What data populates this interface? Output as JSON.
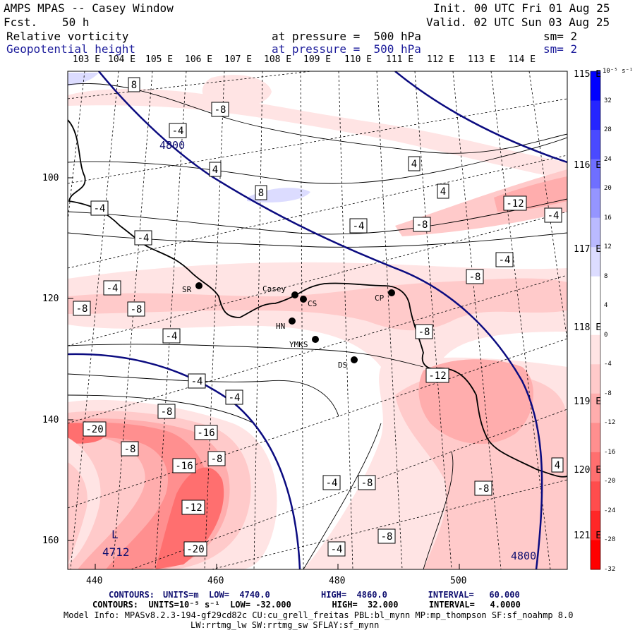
{
  "header": {
    "title": "AMPS MPAS -- Casey Window",
    "fcst_label": "Fcst.",
    "fcst_value": "50 h",
    "init": "Init. 00 UTC Fri 01 Aug 25",
    "valid": "Valid. 02 UTC Sun 03 Aug 25",
    "field1_name": "Relative vorticity",
    "field1_level": "at pressure =  500 hPa",
    "field1_sm": "sm= 2",
    "field2_name": "Geopotential height",
    "field2_level": "at pressure =  500 hPa",
    "field2_sm": "sm= 2"
  },
  "axes": {
    "top_lon_labels": [
      "103 E",
      "104 E",
      "105 E",
      "106 E",
      "107 E",
      "108 E",
      "109 E",
      "110 E",
      "111 E",
      "112 E",
      "113 E",
      "114 E"
    ],
    "right_lon_labels": [
      "115 E",
      "116 E",
      "117 E",
      "118 E",
      "119 E",
      "120 E",
      "121 E"
    ],
    "left_y_ticks": [
      "100",
      "120",
      "140",
      "160"
    ],
    "bottom_x_ticks": [
      "440",
      "460",
      "480",
      "500"
    ]
  },
  "colorbar": {
    "unit": "10⁻⁵ s⁻¹",
    "labels": [
      "32",
      "28",
      "24",
      "20",
      "16",
      "12",
      "8",
      "4",
      "0",
      "-4",
      "-8",
      "-12",
      "-16",
      "-20",
      "-24",
      "-28",
      "-32"
    ],
    "colors": [
      "#0000ff",
      "#2525ff",
      "#4a4aff",
      "#6f6fff",
      "#9595ff",
      "#babaff",
      "#dcdcff",
      "#ffffff",
      "#ffffff",
      "#ffe4e4",
      "#ffcaca",
      "#ffadad",
      "#ff8f8f",
      "#ff6f6f",
      "#ff4d4d",
      "#ff2727",
      "#ff0000"
    ]
  },
  "stations": [
    {
      "name": "SR"
    },
    {
      "name": "Casey"
    },
    {
      "name": "CS"
    },
    {
      "name": "CP"
    },
    {
      "name": "HN"
    },
    {
      "name": "YMKS"
    },
    {
      "name": "DS"
    }
  ],
  "contour_labels": [
    "8",
    "-8",
    "-4",
    "4",
    "8",
    "4",
    "4",
    "-4",
    "-12",
    "-4",
    "-8",
    "-4",
    "-4",
    "-4",
    "-8",
    "-4",
    "-8",
    "-8",
    "-8",
    "-4",
    "-4",
    "-12",
    "-4",
    "-8",
    "-20",
    "-16",
    "-8",
    "-16",
    "-8",
    "-12",
    "-20",
    "-4",
    "-8",
    "-8",
    "-8",
    "-4",
    "4"
  ],
  "height_labels": [
    "4800",
    "4800"
  ],
  "low_marker": {
    "symbol": "L",
    "value": "4712"
  },
  "footer": {
    "line1_label": "CONTOURS:",
    "line1": "UNITS=m  LOW=  4740.0          HIGH=  4860.0        INTERVAL=   60.000",
    "line2": "CONTOURS:  UNITS=10⁻⁵ s⁻¹  LOW= -32.000        HIGH=  32.000      INTERVAL=   4.0000",
    "line3": "Model Info: MPASv8.2.3-194-gf29cd82c CU:cu_grell_freitas PBL:bl_mynn MP:mp_thompson SF:sf_noahmp 8.0",
    "line4": "LW:rrtmg_lw SW:rrtmg_sw SFLAY:sf_mynn"
  }
}
